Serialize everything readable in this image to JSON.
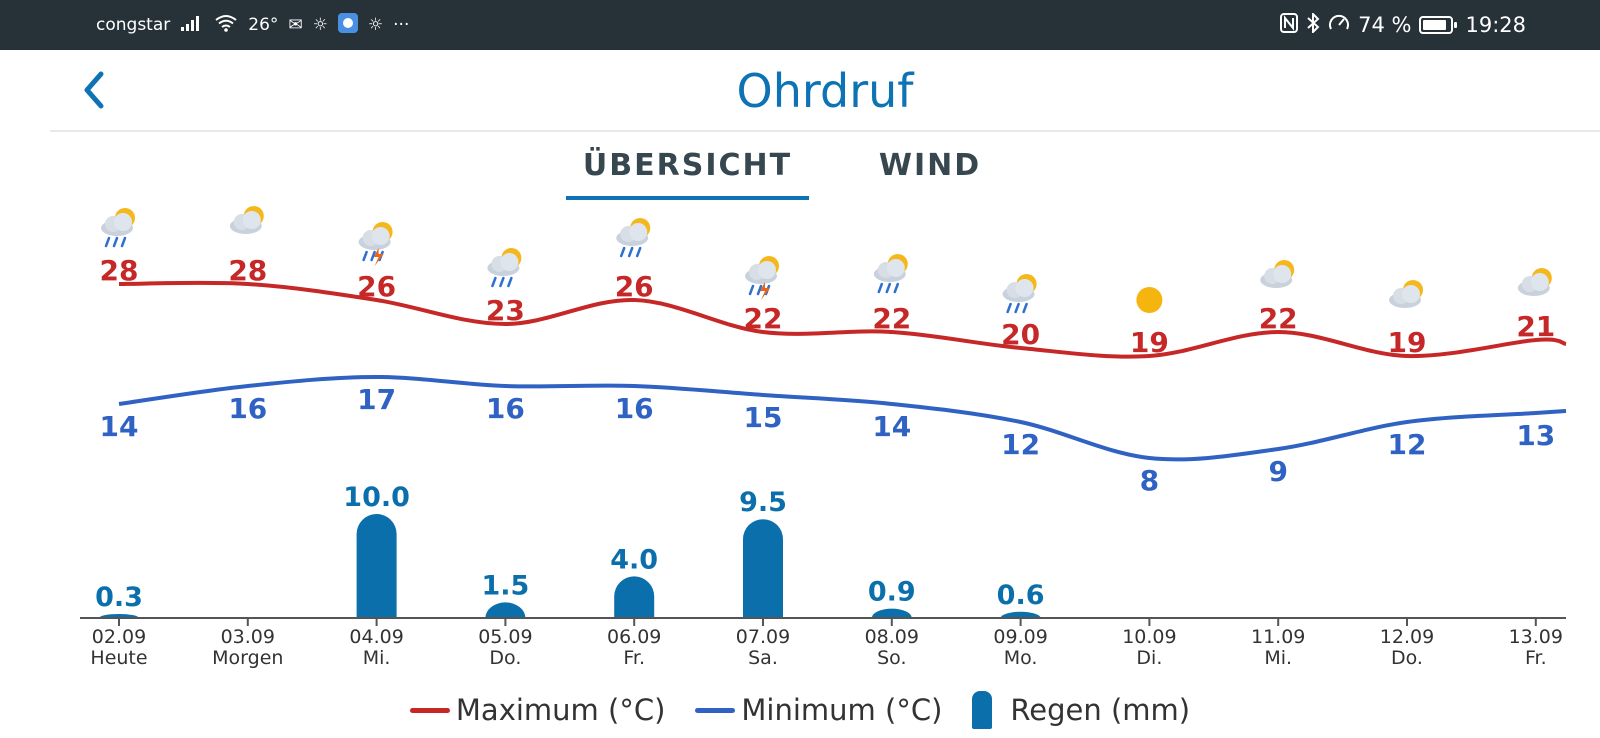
{
  "status_bar": {
    "carrier": "congstar",
    "temp": "26°",
    "battery": "74 %",
    "battery_level": 0.74,
    "time": "19:28",
    "overflow": "···"
  },
  "header": {
    "title": "Ohrdruf"
  },
  "tabs": [
    {
      "label": "ÜBERSICHT",
      "active": true
    },
    {
      "label": "WIND",
      "active": false
    }
  ],
  "legend": {
    "max_label": "Maximum (°C)",
    "min_label": "Minimum (°C)",
    "rain_label": "Regen (mm)"
  },
  "colors": {
    "max": "#c62828",
    "min": "#2f62c3",
    "rain": "#0b6fab",
    "accent": "#0d73b5"
  },
  "chart_data": {
    "type": "line",
    "categories": [
      "02.09",
      "03.09",
      "04.09",
      "05.09",
      "06.09",
      "07.09",
      "08.09",
      "09.09",
      "10.09",
      "11.09",
      "12.09",
      "13.09"
    ],
    "weekdays": [
      "Heute",
      "Morgen",
      "Mi.",
      "Do.",
      "Fr.",
      "Sa.",
      "So.",
      "Mo.",
      "Di.",
      "Mi.",
      "Do.",
      "Fr."
    ],
    "icons": [
      "rain-cloud-icon",
      "partly-cloudy-icon",
      "thunderstorm-icon",
      "rain-cloud-icon",
      "rain-cloud-icon",
      "thunderstorm-icon",
      "rain-cloud-icon",
      "rain-cloud-icon",
      "sun-icon",
      "partly-cloudy-icon",
      "partly-cloudy-icon",
      "partly-cloudy-icon"
    ],
    "series": [
      {
        "name": "Maximum (°C)",
        "values": [
          28,
          28,
          26,
          23,
          26,
          22,
          22,
          20,
          19,
          22,
          19,
          21
        ]
      },
      {
        "name": "Minimum (°C)",
        "values": [
          14,
          16,
          17,
          16,
          16,
          15,
          14,
          12,
          8,
          9,
          12,
          13
        ]
      },
      {
        "name": "Regen (mm)",
        "values": [
          0.3,
          null,
          10.0,
          1.5,
          4.0,
          9.5,
          0.9,
          0.6,
          null,
          null,
          null,
          null
        ]
      }
    ]
  }
}
